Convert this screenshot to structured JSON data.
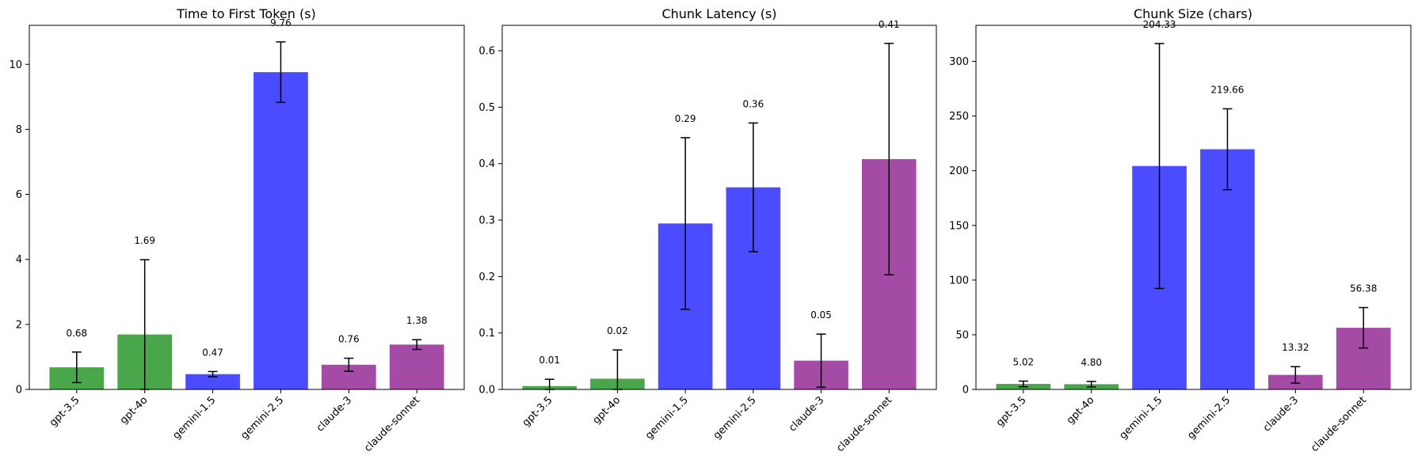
{
  "colors": {
    "openai": "#4aa64a",
    "google": "#4b4bff",
    "anthropic": "#a44ca5",
    "errorbar": "#000000",
    "axis": "#000000"
  },
  "chart_data": [
    {
      "type": "bar",
      "title": "Time to First Token (s)",
      "xlabel": "",
      "ylabel": "",
      "categories": [
        "gpt-3.5",
        "gpt-4o",
        "gemini-1.5",
        "gemini-2.5",
        "claude-3",
        "claude-sonnet"
      ],
      "values": [
        0.68,
        1.69,
        0.47,
        9.76,
        0.76,
        1.38
      ],
      "value_labels": [
        "0.68",
        "1.69",
        "0.47",
        "9.76",
        "0.76",
        "1.38"
      ],
      "errors": [
        0.47,
        2.3,
        0.08,
        0.93,
        0.2,
        0.15
      ],
      "bar_color_keys": [
        "openai",
        "openai",
        "google",
        "google",
        "anthropic",
        "anthropic"
      ],
      "ylim": [
        0,
        11.2
      ],
      "yticks": [
        0,
        2,
        4,
        6,
        8,
        10
      ],
      "ytick_labels": [
        "0",
        "2",
        "4",
        "6",
        "8",
        "10"
      ],
      "grid": false,
      "legend": "none"
    },
    {
      "type": "bar",
      "title": "Chunk Latency (s)",
      "xlabel": "",
      "ylabel": "",
      "categories": [
        "gpt-3.5",
        "gpt-4o",
        "gemini-1.5",
        "gemini-2.5",
        "claude-3",
        "claude-sonnet"
      ],
      "values": [
        0.006,
        0.019,
        0.294,
        0.358,
        0.051,
        0.408
      ],
      "value_labels": [
        "0.01",
        "0.02",
        "0.29",
        "0.36",
        "0.05",
        "0.41"
      ],
      "errors": [
        0.012,
        0.051,
        0.152,
        0.114,
        0.047,
        0.205
      ],
      "bar_color_keys": [
        "openai",
        "openai",
        "google",
        "google",
        "anthropic",
        "anthropic"
      ],
      "ylim": [
        0,
        0.645
      ],
      "yticks": [
        0,
        0.1,
        0.2,
        0.3,
        0.4,
        0.5,
        0.6
      ],
      "ytick_labels": [
        "0.0",
        "0.1",
        "0.2",
        "0.3",
        "0.4",
        "0.5",
        "0.6"
      ],
      "grid": false,
      "legend": "none"
    },
    {
      "type": "bar",
      "title": "Chunk Size (chars)",
      "xlabel": "",
      "ylabel": "",
      "categories": [
        "gpt-3.5",
        "gpt-4o",
        "gemini-1.5",
        "gemini-2.5",
        "claude-3",
        "claude-sonnet"
      ],
      "values": [
        5.02,
        4.8,
        204.33,
        219.66,
        13.32,
        56.38
      ],
      "value_labels": [
        "5.02",
        "4.80",
        "204.33",
        "219.66",
        "13.32",
        "56.38"
      ],
      "errors": [
        2.6,
        2.5,
        112.0,
        37.0,
        7.5,
        18.5
      ],
      "bar_color_keys": [
        "openai",
        "openai",
        "google",
        "google",
        "anthropic",
        "anthropic"
      ],
      "ylim": [
        0,
        333
      ],
      "yticks": [
        0,
        50,
        100,
        150,
        200,
        250,
        300
      ],
      "ytick_labels": [
        "0",
        "50",
        "100",
        "150",
        "200",
        "250",
        "300"
      ],
      "grid": false,
      "legend": "none"
    }
  ]
}
